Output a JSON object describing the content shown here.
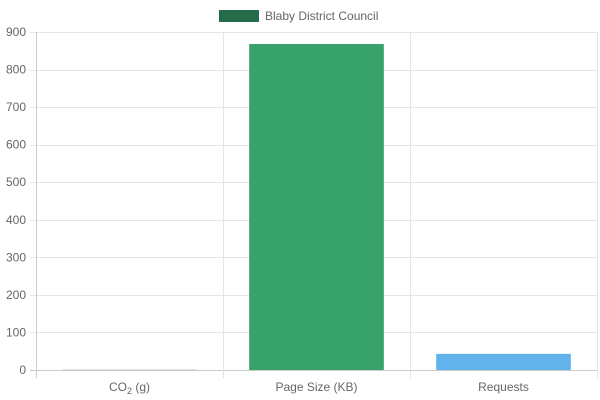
{
  "chart_data": {
    "type": "bar",
    "categories": [
      "CO",
      "Page Size (KB)",
      "Requests"
    ],
    "category_subscripts": [
      "2",
      "",
      ""
    ],
    "category_suffixes": [
      " (g)",
      "",
      ""
    ],
    "series": [
      {
        "name": "Blaby District Council",
        "values": [
          0.5,
          868,
          43
        ]
      }
    ],
    "bar_colors": [
      "#236b4a",
      "#38a26b",
      "#62b2eb"
    ],
    "legend_color": "#236b4a",
    "ylim": [
      0,
      900
    ],
    "yticks": [
      0,
      100,
      200,
      300,
      400,
      500,
      600,
      700,
      800,
      900
    ],
    "grid": true,
    "legend_position": "top-center"
  }
}
